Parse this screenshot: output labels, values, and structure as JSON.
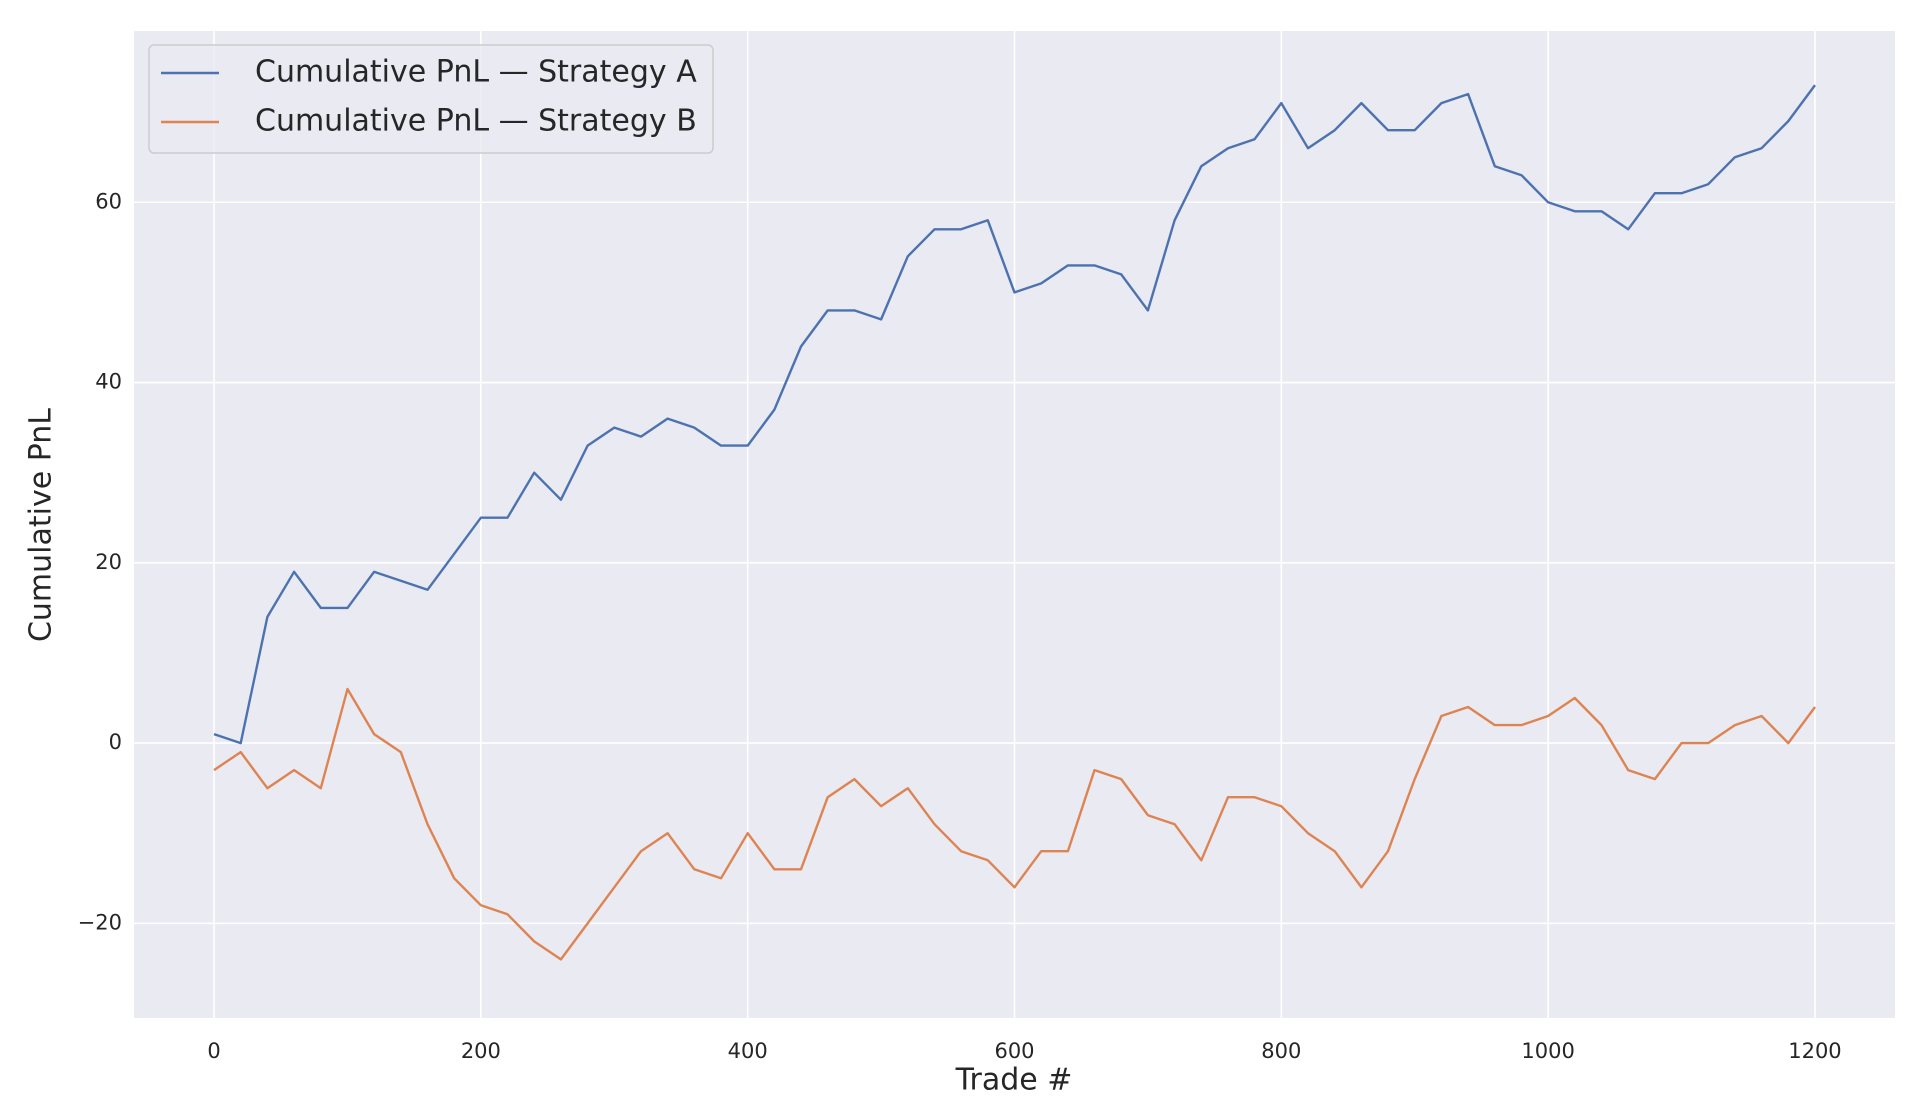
{
  "chart_data": {
    "type": "line",
    "xlabel": "Trade #",
    "ylabel": "Cumulative PnL",
    "x": [
      0,
      20,
      40,
      60,
      80,
      100,
      120,
      140,
      160,
      180,
      200,
      220,
      240,
      260,
      280,
      300,
      320,
      340,
      360,
      380,
      400,
      420,
      440,
      460,
      480,
      500,
      520,
      540,
      560,
      580,
      600,
      620,
      640,
      660,
      680,
      700,
      720,
      740,
      760,
      780,
      800,
      820,
      840,
      860,
      880,
      900,
      920,
      940,
      960,
      980,
      1000,
      1020,
      1040,
      1060,
      1080,
      1100,
      1120,
      1140,
      1160,
      1180,
      1200
    ],
    "series": [
      {
        "name": "Cumulative PnL — Strategy A",
        "color": "#4c72b0",
        "values": [
          1,
          0,
          14,
          19,
          15,
          15,
          19,
          18,
          17,
          21,
          25,
          25,
          30,
          27,
          33,
          35,
          34,
          36,
          35,
          33,
          33,
          37,
          44,
          48,
          48,
          47,
          54,
          57,
          57,
          58,
          50,
          51,
          53,
          53,
          52,
          48,
          58,
          64,
          66,
          67,
          71,
          66,
          68,
          71,
          68,
          68,
          71,
          72,
          64,
          63,
          60,
          59,
          59,
          57,
          61,
          61,
          62,
          65,
          66,
          69,
          73
        ]
      },
      {
        "name": "Cumulative PnL — Strategy B",
        "color": "#dd8452",
        "values": [
          -3,
          -1,
          -5,
          -3,
          -5,
          6,
          1,
          -1,
          -9,
          -15,
          -18,
          -19,
          -22,
          -24,
          -20,
          -16,
          -12,
          -10,
          -14,
          -15,
          -10,
          -14,
          -14,
          -6,
          -4,
          -7,
          -5,
          -9,
          -12,
          -13,
          -16,
          -12,
          -12,
          -3,
          -4,
          -8,
          -9,
          -13,
          -6,
          -6,
          -7,
          -10,
          -12,
          -16,
          -12,
          -4,
          3,
          4,
          2,
          2,
          3,
          5,
          2,
          -3,
          -4,
          0,
          0,
          2,
          3,
          0,
          4
        ]
      }
    ],
    "xlim": [
      -60,
      1260
    ],
    "ylim": [
      -30.5,
      79
    ],
    "xticks": [
      0,
      200,
      400,
      600,
      800,
      1000,
      1200
    ],
    "yticks": [
      {
        "value": -20,
        "label": "−20"
      },
      0,
      20,
      40,
      60
    ],
    "grid": true,
    "legend": "upper left",
    "background": "#eaeaf2"
  }
}
